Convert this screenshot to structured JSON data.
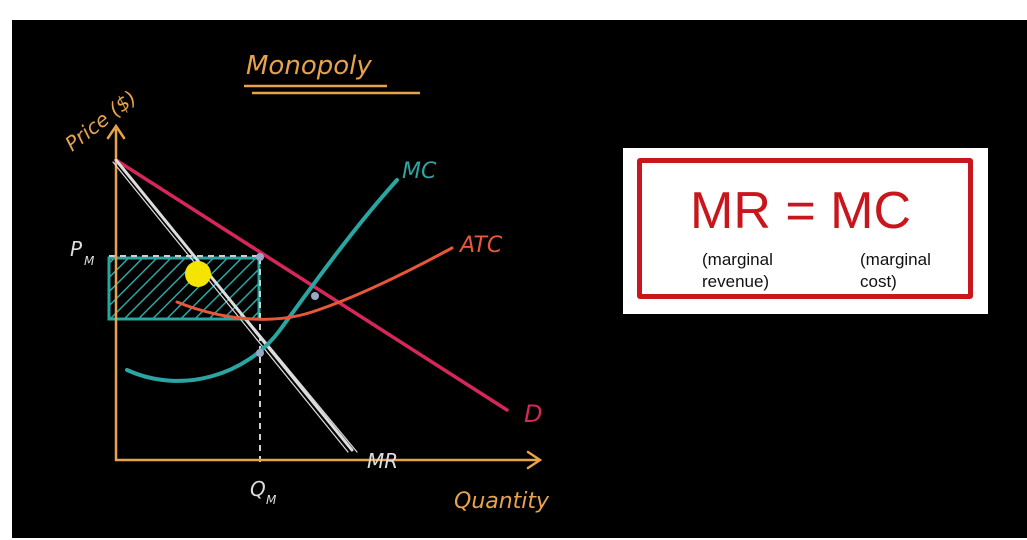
{
  "diagram": {
    "title": "Monopoly",
    "y_axis_label": "Price ($)",
    "x_axis_label": "Quantity",
    "price_marker": "P",
    "price_marker_sub": "M",
    "quantity_marker": "Q",
    "quantity_marker_sub": "M",
    "curve_labels": {
      "mc": "MC",
      "atc": "ATC",
      "demand": "D",
      "mr": "MR"
    },
    "colors": {
      "background": "#000000",
      "axes": "#e8a24a",
      "demand": "#d6265a",
      "mr": "#dddddd",
      "mc": "#2aa6a2",
      "atc": "#e8573a",
      "profit_hatch": "#2aa6a2",
      "cursor": "#f5e400"
    }
  },
  "formula": {
    "equation": "MR = MC",
    "mr_note_line1": "(marginal",
    "mr_note_line2": "revenue)",
    "mc_note_line1": "(marginal",
    "mc_note_line2": "cost)",
    "color": "#c8161d"
  }
}
